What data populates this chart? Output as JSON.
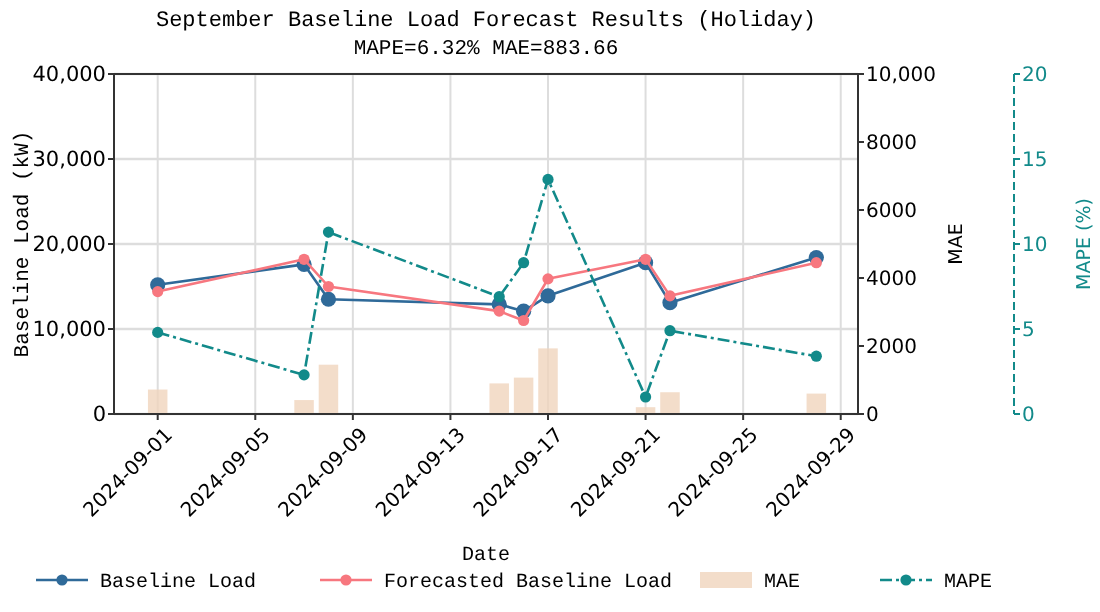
{
  "chart_data": {
    "type": "line",
    "title": "September Baseline Load Forecast Results (Holiday)",
    "subtitle": "MAPE=6.32%  MAE=883.66",
    "xlabel": "Date",
    "ylabel": "Baseline Load (kW)",
    "y2label": "MAE",
    "y3label": "MAPE (%)",
    "x": [
      "2024-09-01",
      "2024-09-07",
      "2024-09-08",
      "2024-09-15",
      "2024-09-16",
      "2024-09-17",
      "2024-09-21",
      "2024-09-22",
      "2024-09-28"
    ],
    "xlim": [
      "2024-08-30T05:00",
      "2024-09-29T17:00"
    ],
    "xticks": [
      {
        "value": "2024-09-01",
        "label": "2024-09-01"
      },
      {
        "value": "2024-09-05",
        "label": "2024-09-05"
      },
      {
        "value": "2024-09-09",
        "label": "2024-09-09"
      },
      {
        "value": "2024-09-13",
        "label": "2024-09-13"
      },
      {
        "value": "2024-09-17",
        "label": "2024-09-17"
      },
      {
        "value": "2024-09-21",
        "label": "2024-09-21"
      },
      {
        "value": "2024-09-25",
        "label": "2024-09-25"
      },
      {
        "value": "2024-09-29",
        "label": "2024-09-29"
      }
    ],
    "ylim": [
      0,
      40000
    ],
    "yticks": [
      {
        "value": 0,
        "label": "0"
      },
      {
        "value": 10000,
        "label": "10,000"
      },
      {
        "value": 20000,
        "label": "20,000"
      },
      {
        "value": 30000,
        "label": "30,000"
      },
      {
        "value": 40000,
        "label": "40,000"
      }
    ],
    "y2lim": [
      0,
      10000
    ],
    "y2ticks": [
      0,
      2000,
      4000,
      6000,
      8000,
      {
        "value": 10000,
        "label": "10,000"
      }
    ],
    "y3lim": [
      0,
      20
    ],
    "y3ticks": [
      0,
      5,
      10,
      15,
      20
    ],
    "grid": true,
    "legend": "bottom",
    "marker": "circle",
    "series": [
      {
        "name": "MAE",
        "type": "bar",
        "axis": "y2",
        "color": "#f0d5bd",
        "values": [
          720,
          410,
          1450,
          900,
          1070,
          1930,
          200,
          640,
          600
        ]
      },
      {
        "name": "Baseline Load",
        "color": "#2f6a99",
        "line_style": "solid",
        "values": [
          15200,
          17600,
          13500,
          12900,
          12100,
          13900,
          17800,
          13100,
          18400
        ]
      },
      {
        "name": "Forecasted Baseline Load",
        "color": "#f7777f",
        "line_style": "solid",
        "values": [
          14400,
          18200,
          15000,
          12100,
          11000,
          15900,
          18200,
          13900,
          17800
        ]
      },
      {
        "name": "MAPE",
        "axis": "y3",
        "color": "#128a8a",
        "line_style": "dashed",
        "values": [
          4.8,
          2.3,
          10.7,
          6.9,
          8.9,
          13.8,
          1.0,
          4.9,
          3.4
        ]
      }
    ]
  }
}
